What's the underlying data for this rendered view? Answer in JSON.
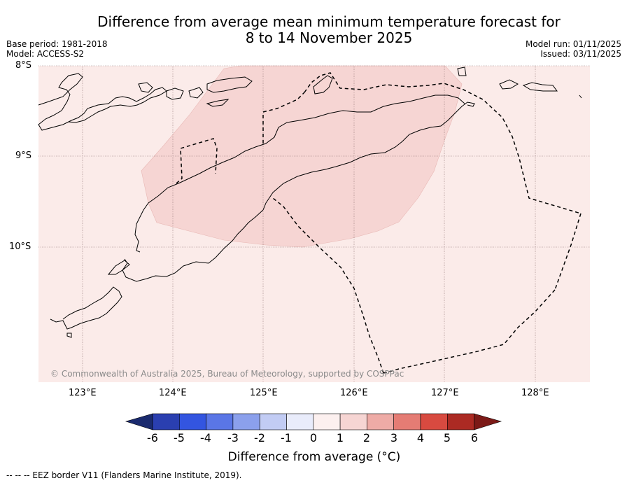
{
  "title_line1": "Difference from average mean minimum temperature forecast for",
  "title_line2": "8 to 14 November 2025",
  "base_period": "Base period: 1981-2018",
  "model": "Model: ACCESS-S2",
  "model_run": "Model run: 01/11/2025",
  "issued": "Issued: 03/11/2025",
  "latitude_labels": [
    "8°S",
    "9°S",
    "10°S"
  ],
  "longitude_labels": [
    "123°E",
    "124°E",
    "125°E",
    "126°E",
    "127°E",
    "128°E"
  ],
  "credit": "© Commonwealth of Australia 2025, Bureau of Meteorology, supported by COSPPac",
  "colorbar": {
    "ticks": [
      "-6",
      "-5",
      "-4",
      "-3",
      "-2",
      "-1",
      "0",
      "1",
      "2",
      "3",
      "4",
      "5",
      "6"
    ],
    "title": "Difference from average (°C)",
    "colors": [
      "#1a2a6e",
      "#2a3fb0",
      "#3355e0",
      "#5a76e6",
      "#8ba0ec",
      "#c2ccf4",
      "#e9ecfb",
      "#fcf0ef",
      "#f6d5d3",
      "#eeaba6",
      "#e57c74",
      "#d84a40",
      "#ac2a23",
      "#7c1a17"
    ]
  },
  "footer": "-- -- -- EEZ border V11 (Flanders Marine Institute, 2019).",
  "colors": {
    "background_anomaly": "#fbebe9",
    "warm_anomaly": "#f6d5d3",
    "coastline": "#000000"
  }
}
